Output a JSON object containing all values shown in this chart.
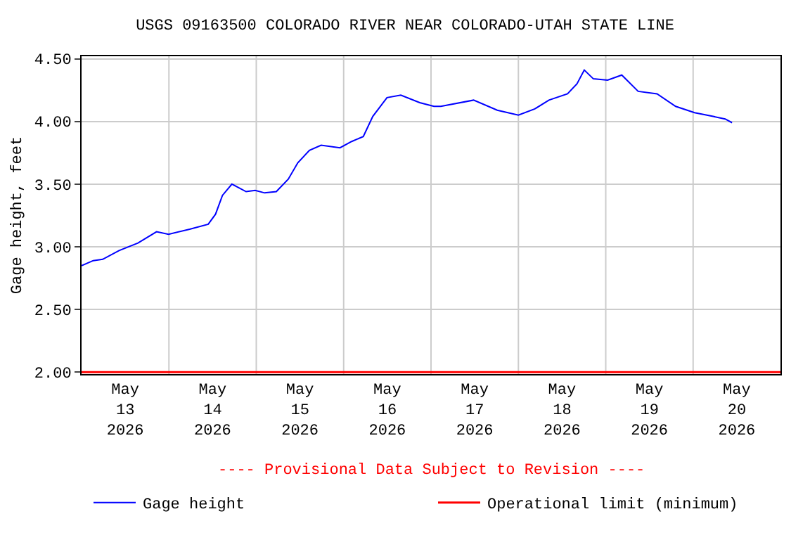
{
  "chart_data": {
    "type": "line",
    "title": "USGS 09163500 COLORADO RIVER NEAR COLORADO-UTAH STATE LINE",
    "ylabel": "Gage height, feet",
    "annotations": [
      "---- Provisional Data Subject to Revision ----"
    ],
    "series": [
      {
        "name": "Gage height",
        "color": "#0000ff",
        "x": [
          "2026-05-13T00:00",
          "2026-05-13T03:12",
          "2026-05-13T05:48",
          "2026-05-13T10:18",
          "2026-05-13T15:30",
          "2026-05-13T20:36",
          "2026-05-13T23:54",
          "2026-05-14T05:42",
          "2026-05-14T10:48",
          "2026-05-14T12:48",
          "2026-05-14T14:42",
          "2026-05-14T17:18",
          "2026-05-14T21:12",
          "2026-05-14T23:42",
          "2026-05-15T02:18",
          "2026-05-15T05:30",
          "2026-05-15T08:48",
          "2026-05-15T11:24",
          "2026-05-15T14:36",
          "2026-05-15T17:48",
          "2026-05-15T23:00",
          "2026-05-16T02:12",
          "2026-05-16T05:24",
          "2026-05-16T08:00",
          "2026-05-16T11:54",
          "2026-05-16T15:42",
          "2026-05-16T20:54",
          "2026-05-17T00:48",
          "2026-05-17T02:42",
          "2026-05-17T11:42",
          "2026-05-17T18:12",
          "2026-05-18T00:00",
          "2026-05-18T04:30",
          "2026-05-18T08:24",
          "2026-05-18T13:30",
          "2026-05-18T16:06",
          "2026-05-18T18:06",
          "2026-05-18T20:36",
          "2026-05-19T00:30",
          "2026-05-19T04:24",
          "2026-05-19T08:54",
          "2026-05-19T14:06",
          "2026-05-19T19:12",
          "2026-05-20T00:24",
          "2026-05-20T05:30",
          "2026-05-20T08:48",
          "2026-05-20T10:42"
        ],
        "values": [
          2.85,
          2.89,
          2.9,
          2.97,
          3.03,
          3.12,
          3.1,
          3.14,
          3.18,
          3.26,
          3.41,
          3.5,
          3.44,
          3.45,
          3.43,
          3.44,
          3.54,
          3.67,
          3.77,
          3.81,
          3.79,
          3.84,
          3.88,
          4.04,
          4.19,
          4.21,
          4.15,
          4.12,
          4.12,
          4.17,
          4.09,
          4.05,
          4.1,
          4.17,
          4.22,
          4.3,
          4.41,
          4.34,
          4.33,
          4.37,
          4.24,
          4.22,
          4.12,
          4.07,
          4.04,
          4.02,
          3.99
        ]
      }
    ],
    "ref_lines": [
      {
        "axis": "y",
        "value": 2.0,
        "label": "Operational limit (minimum)",
        "color": "#ff0000"
      }
    ],
    "xlim": [
      "2026-05-13T00:00",
      "2026-05-21T00:00"
    ],
    "xticks": [
      {
        "value": "2026-05-13T12:00",
        "label": "May\n13\n2026"
      },
      {
        "value": "2026-05-14T12:00",
        "label": "May\n14\n2026"
      },
      {
        "value": "2026-05-15T12:00",
        "label": "May\n15\n2026"
      },
      {
        "value": "2026-05-16T12:00",
        "label": "May\n16\n2026"
      },
      {
        "value": "2026-05-17T12:00",
        "label": "May\n17\n2026"
      },
      {
        "value": "2026-05-18T12:00",
        "label": "May\n18\n2026"
      },
      {
        "value": "2026-05-19T12:00",
        "label": "May\n19\n2026"
      },
      {
        "value": "2026-05-20T12:00",
        "label": "May\n20\n2026"
      },
      {
        "value": "2026-05-14T00:00",
        "label": null
      },
      {
        "value": "2026-05-15T00:00",
        "label": null
      },
      {
        "value": "2026-05-16T00:00",
        "label": null
      },
      {
        "value": "2026-05-17T00:00",
        "label": null
      },
      {
        "value": "2026-05-18T00:00",
        "label": null
      },
      {
        "value": "2026-05-19T00:00",
        "label": null
      },
      {
        "value": "2026-05-20T00:00",
        "label": null
      }
    ],
    "ylim": [
      1.985,
      4.52
    ],
    "yticks": [
      {
        "value": 2.0,
        "label": "2.00"
      },
      {
        "value": 2.5,
        "label": "2.50"
      },
      {
        "value": 3.0,
        "label": "3.00"
      },
      {
        "value": 3.5,
        "label": "3.50"
      },
      {
        "value": 4.0,
        "label": "4.00"
      },
      {
        "value": 4.5,
        "label": "4.50"
      }
    ],
    "grid": true,
    "legend": "bottom",
    "line_style": "solid",
    "marker": "none"
  }
}
